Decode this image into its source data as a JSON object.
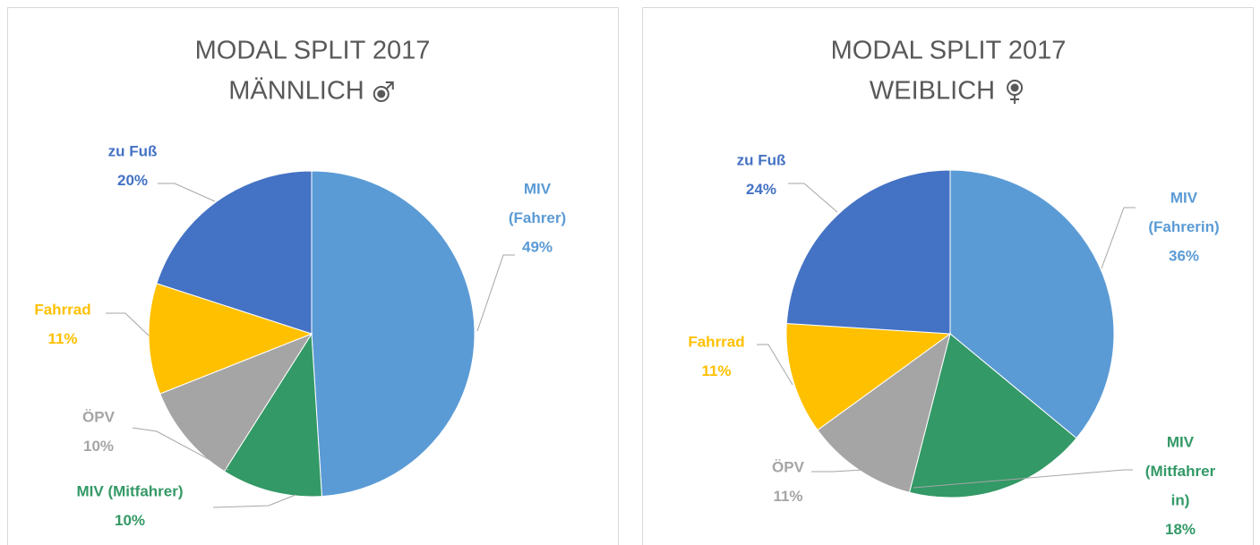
{
  "chart_data": [
    {
      "type": "pie",
      "title": "MODAL SPLIT 2017",
      "subtitle": "MÄNNLICH",
      "categories": [
        [
          "MIV",
          "(Fahrer)"
        ],
        [
          "MIV (Mitfahrer)"
        ],
        [
          "ÖPV"
        ],
        [
          "Fahrrad"
        ],
        [
          "zu Fuß"
        ]
      ],
      "values": [
        49,
        10,
        10,
        11,
        20
      ],
      "value_labels": [
        "49%",
        "10%",
        "10%",
        "11%",
        "20%"
      ],
      "colors": [
        "#5b9bd5",
        "#339966",
        "#a5a5a5",
        "#ffc000",
        "#4472c4"
      ]
    },
    {
      "type": "pie",
      "title": "MODAL SPLIT 2017",
      "subtitle": "WEIBLICH",
      "categories": [
        [
          "MIV",
          "(Fahrerin)"
        ],
        [
          "MIV",
          "(Mitfahrer",
          "in)"
        ],
        [
          "ÖPV"
        ],
        [
          "Fahrrad"
        ],
        [
          "zu Fuß"
        ]
      ],
      "values": [
        36,
        18,
        11,
        11,
        24
      ],
      "value_labels": [
        "36%",
        "18%",
        "11%",
        "11%",
        "24%"
      ],
      "colors": [
        "#5b9bd5",
        "#339966",
        "#a5a5a5",
        "#ffc000",
        "#4472c4"
      ]
    }
  ]
}
